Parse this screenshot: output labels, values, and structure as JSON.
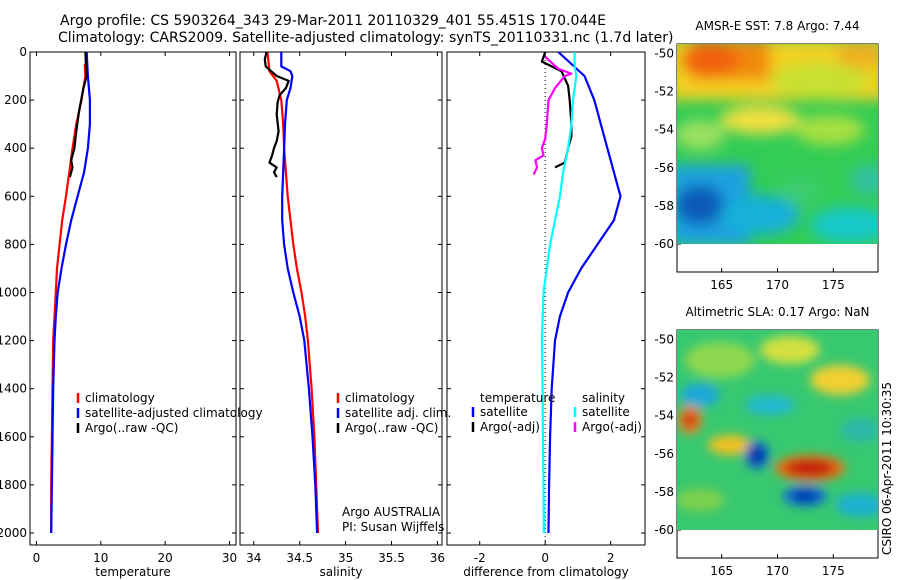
{
  "header": {
    "line1": "Argo profile: CS 5903264_343 29-Mar-2011 20110329_401 55.451S 170.044E",
    "line2": "Climatology: CARS2009. Satellite-adjusted climatology: synTS_20110331.nc (1.7d later)"
  },
  "credit": "CSIRO 06-Apr-2011 10:30:35",
  "colors": {
    "red": "#ff0000",
    "blue": "#0000ff",
    "black": "#000000",
    "cyan": "#00ffff",
    "magenta": "#ff00ff"
  },
  "chart_data": [
    {
      "type": "line",
      "xlabel": "temperature",
      "ylabel": "",
      "xlim": [
        -1,
        31
      ],
      "ylim": [
        2050,
        0
      ],
      "xticks": [
        0,
        10,
        20,
        30
      ],
      "yticks": [
        0,
        200,
        400,
        600,
        800,
        1000,
        1200,
        1400,
        1600,
        1800,
        2000
      ],
      "legend": [
        "climatology",
        "satellite-adjusted climatology",
        "Argo(..raw -QC)"
      ],
      "series": [
        {
          "name": "climatology",
          "color": "red",
          "points": [
            [
              7.5,
              50
            ],
            [
              7.6,
              100
            ],
            [
              7.0,
              200
            ],
            [
              6.2,
              300
            ],
            [
              5.6,
              400
            ],
            [
              5.1,
              500
            ],
            [
              4.6,
              600
            ],
            [
              4.0,
              700
            ],
            [
              3.6,
              800
            ],
            [
              3.2,
              900
            ],
            [
              3.0,
              1000
            ],
            [
              2.8,
              1100
            ],
            [
              2.6,
              1200
            ],
            [
              2.5,
              1400
            ],
            [
              2.4,
              1600
            ],
            [
              2.3,
              1800
            ],
            [
              2.3,
              2000
            ]
          ]
        },
        {
          "name": "satellite-adjusted climatology",
          "color": "blue",
          "points": [
            [
              7.8,
              0
            ],
            [
              8.0,
              100
            ],
            [
              8.3,
              200
            ],
            [
              8.3,
              300
            ],
            [
              8.0,
              400
            ],
            [
              7.4,
              500
            ],
            [
              6.4,
              600
            ],
            [
              5.4,
              700
            ],
            [
              4.6,
              800
            ],
            [
              3.9,
              900
            ],
            [
              3.3,
              1000
            ],
            [
              3.0,
              1100
            ],
            [
              2.8,
              1200
            ],
            [
              2.6,
              1400
            ],
            [
              2.5,
              1600
            ],
            [
              2.4,
              1800
            ],
            [
              2.3,
              2000
            ]
          ]
        },
        {
          "name": "Argo(..raw -QC)",
          "color": "black",
          "points": [
            [
              7.6,
              0
            ],
            [
              7.7,
              60
            ],
            [
              7.8,
              100
            ],
            [
              7.3,
              150
            ],
            [
              6.6,
              250
            ],
            [
              6.2,
              330
            ],
            [
              5.9,
              400
            ],
            [
              5.4,
              450
            ],
            [
              5.6,
              480
            ],
            [
              5.2,
              520
            ]
          ]
        }
      ]
    },
    {
      "type": "line",
      "xlabel": "salinity",
      "ylabel": "",
      "xlim": [
        33.85,
        36.05
      ],
      "ylim": [
        2050,
        0
      ],
      "xticks": [
        34,
        34.5,
        35,
        35.5,
        36
      ],
      "yticks": [
        0,
        200,
        400,
        600,
        800,
        1000,
        1200,
        1400,
        1600,
        1800,
        2000
      ],
      "legend": [
        "climatology",
        "satellite adj. clim.",
        "Argo(..raw -QC)"
      ],
      "annotation": [
        "Argo AUSTRALIA",
        "PI: Susan Wijffels"
      ],
      "series": [
        {
          "name": "climatology",
          "color": "red",
          "points": [
            [
              34.15,
              0
            ],
            [
              34.17,
              80
            ],
            [
              34.25,
              120
            ],
            [
              34.3,
              200
            ],
            [
              34.32,
              300
            ],
            [
              34.33,
              400
            ],
            [
              34.35,
              500
            ],
            [
              34.37,
              600
            ],
            [
              34.4,
              700
            ],
            [
              34.43,
              800
            ],
            [
              34.47,
              900
            ],
            [
              34.52,
              1000
            ],
            [
              34.56,
              1100
            ],
            [
              34.59,
              1200
            ],
            [
              34.63,
              1400
            ],
            [
              34.66,
              1600
            ],
            [
              34.68,
              1800
            ],
            [
              34.7,
              2000
            ]
          ]
        },
        {
          "name": "satellite adj. clim.",
          "color": "blue",
          "points": [
            [
              34.3,
              0
            ],
            [
              34.3,
              60
            ],
            [
              34.4,
              80
            ],
            [
              34.42,
              100
            ],
            [
              34.4,
              150
            ],
            [
              34.36,
              200
            ],
            [
              34.34,
              300
            ],
            [
              34.33,
              400
            ],
            [
              34.32,
              500
            ],
            [
              34.31,
              600
            ],
            [
              34.31,
              700
            ],
            [
              34.33,
              800
            ],
            [
              34.37,
              900
            ],
            [
              34.43,
              1000
            ],
            [
              34.5,
              1100
            ],
            [
              34.55,
              1200
            ],
            [
              34.6,
              1400
            ],
            [
              34.64,
              1600
            ],
            [
              34.67,
              1800
            ],
            [
              34.69,
              2000
            ]
          ]
        },
        {
          "name": "Argo(..raw -QC)",
          "color": "black",
          "points": [
            [
              34.14,
              0
            ],
            [
              34.12,
              30
            ],
            [
              34.13,
              60
            ],
            [
              34.25,
              100
            ],
            [
              34.38,
              120
            ],
            [
              34.35,
              150
            ],
            [
              34.28,
              180
            ],
            [
              34.26,
              210
            ],
            [
              34.25,
              260
            ],
            [
              34.27,
              330
            ],
            [
              34.25,
              370
            ],
            [
              34.22,
              400
            ],
            [
              34.2,
              430
            ],
            [
              34.17,
              460
            ],
            [
              34.25,
              480
            ],
            [
              34.22,
              500
            ],
            [
              34.25,
              520
            ]
          ]
        }
      ]
    },
    {
      "type": "line",
      "xlabel": "difference from climatology",
      "ylabel": "",
      "xlim": [
        -3.0,
        3.05
      ],
      "ylim": [
        2050,
        0
      ],
      "xticks": [
        -2,
        0,
        2
      ],
      "yticks": [
        0,
        200,
        400,
        600,
        800,
        1000,
        1200,
        1400,
        1600,
        1800,
        2000
      ],
      "legend_headers": [
        "temperature",
        "salinity"
      ],
      "legend": [
        "satellite",
        "Argo(-adj)",
        "satellite",
        "Argo(-adj)"
      ],
      "series": [
        {
          "name": "temperature satellite",
          "color": "blue",
          "points": [
            [
              0.4,
              0
            ],
            [
              1.2,
              100
            ],
            [
              1.5,
              200
            ],
            [
              1.8,
              350
            ],
            [
              2.1,
              500
            ],
            [
              2.3,
              600
            ],
            [
              2.1,
              700
            ],
            [
              1.6,
              800
            ],
            [
              1.1,
              900
            ],
            [
              0.7,
              1000
            ],
            [
              0.45,
              1100
            ],
            [
              0.3,
              1200
            ],
            [
              0.2,
              1400
            ],
            [
              0.15,
              1600
            ],
            [
              0.12,
              1800
            ],
            [
              0.1,
              2000
            ]
          ]
        },
        {
          "name": "temperature Argo(-adj)",
          "color": "black",
          "points": [
            [
              0.0,
              0
            ],
            [
              -0.1,
              40
            ],
            [
              0.2,
              60
            ],
            [
              0.5,
              80
            ],
            [
              0.6,
              110
            ],
            [
              0.7,
              140
            ],
            [
              0.75,
              200
            ],
            [
              0.8,
              300
            ],
            [
              0.8,
              350
            ],
            [
              0.7,
              400
            ],
            [
              0.65,
              430
            ],
            [
              0.6,
              460
            ],
            [
              0.3,
              480
            ]
          ]
        },
        {
          "name": "salinity satellite",
          "color": "cyan",
          "points": [
            [
              0.9,
              0
            ],
            [
              0.9,
              60
            ],
            [
              0.95,
              100
            ],
            [
              0.85,
              200
            ],
            [
              0.8,
              300
            ],
            [
              0.7,
              400
            ],
            [
              0.55,
              500
            ],
            [
              0.45,
              600
            ],
            [
              0.3,
              700
            ],
            [
              0.15,
              800
            ],
            [
              0.05,
              900
            ],
            [
              -0.05,
              1000
            ],
            [
              -0.1,
              1200
            ],
            [
              -0.08,
              1400
            ],
            [
              -0.07,
              1600
            ],
            [
              -0.05,
              1800
            ],
            [
              -0.04,
              2000
            ]
          ]
        },
        {
          "name": "salinity Argo(-adj)",
          "color": "magenta",
          "points": [
            [
              0.0,
              20
            ],
            [
              0.4,
              70
            ],
            [
              0.8,
              90
            ],
            [
              0.6,
              100
            ],
            [
              0.3,
              150
            ],
            [
              0.1,
              200
            ],
            [
              0.05,
              300
            ],
            [
              0.0,
              360
            ],
            [
              -0.1,
              400
            ],
            [
              -0.05,
              430
            ],
            [
              -0.3,
              450
            ],
            [
              -0.25,
              480
            ],
            [
              -0.35,
              510
            ]
          ]
        }
      ]
    },
    {
      "type": "heatmap",
      "title": "AMSR-E SST: 7.8 Argo: 7.44",
      "xticks": [
        165,
        170,
        175
      ],
      "yticks": [
        -50,
        -52,
        -54,
        -56,
        -58,
        -60
      ],
      "xlim": [
        161,
        179
      ],
      "ylim": [
        -60,
        -49.5
      ],
      "profile_position": [
        170.0,
        -55.45
      ]
    },
    {
      "type": "heatmap",
      "title": "Altimetric SLA: 0.17 Argo: NaN",
      "xticks": [
        165,
        170,
        175
      ],
      "yticks": [
        -50,
        -52,
        -54,
        -56,
        -58,
        -60
      ],
      "xlim": [
        161,
        179
      ],
      "ylim": [
        -60,
        -49.5
      ],
      "profile_position": [
        170.0,
        -55.45
      ]
    }
  ]
}
